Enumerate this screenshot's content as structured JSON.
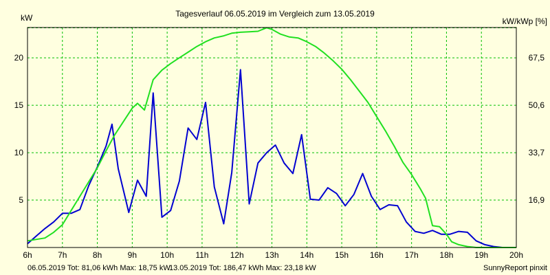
{
  "chart_data": {
    "type": "line",
    "title": "Tagesverlauf 06.05.2019 im Vergleich zum 13.05.2019",
    "ylabel_left": "kW",
    "ylabel_right": "kW/kWp [%]",
    "xlim": [
      6,
      20
    ],
    "ylim": [
      0,
      23.2
    ],
    "x_ticks": [
      "6h",
      "7h",
      "8h",
      "9h",
      "10h",
      "11h",
      "12h",
      "13h",
      "14h",
      "15h",
      "16h",
      "17h",
      "18h",
      "19h",
      "20h"
    ],
    "y_ticks_left": [
      "5",
      "10",
      "15",
      "20"
    ],
    "y_ticks_right": [
      "16,9",
      "33,7",
      "50,6",
      "67,5"
    ],
    "grid": true,
    "colors": {
      "background": "#ffffe0",
      "grid": "#00c000",
      "series_a": "#0000d0",
      "series_b": "#20e020"
    },
    "series": [
      {
        "color": "#0000d0",
        "x": [
          6.0,
          6.25,
          6.5,
          6.75,
          7.0,
          7.25,
          7.5,
          7.75,
          8.0,
          8.25,
          8.42,
          8.6,
          8.9,
          9.15,
          9.4,
          9.6,
          9.85,
          10.1,
          10.35,
          10.6,
          10.85,
          11.1,
          11.35,
          11.62,
          11.85,
          12.1,
          12.35,
          12.6,
          12.85,
          13.1,
          13.35,
          13.6,
          13.85,
          14.1,
          14.35,
          14.6,
          14.85,
          15.1,
          15.35,
          15.6,
          15.85,
          16.1,
          16.35,
          16.6,
          16.85,
          17.1,
          17.35,
          17.6,
          17.85,
          18.1,
          18.35,
          18.6,
          18.85,
          19.1,
          19.35,
          19.6,
          19.85,
          20.0
        ],
        "y": [
          0.4,
          1.2,
          2.0,
          2.7,
          3.6,
          3.6,
          4.0,
          6.5,
          8.5,
          10.7,
          13.0,
          8.3,
          3.7,
          7.1,
          5.4,
          16.3,
          3.2,
          3.9,
          7.0,
          12.6,
          11.4,
          15.3,
          6.4,
          2.5,
          7.9,
          18.75,
          4.6,
          8.9,
          10.0,
          10.8,
          8.9,
          7.8,
          11.9,
          5.1,
          5.0,
          6.3,
          5.7,
          4.4,
          5.6,
          7.8,
          5.4,
          4.0,
          4.5,
          4.4,
          2.7,
          1.7,
          1.5,
          1.8,
          1.4,
          1.4,
          1.7,
          1.6,
          0.7,
          0.3,
          0.1,
          0.0,
          0.0,
          0.0
        ]
      },
      {
        "color": "#20e020",
        "x": [
          6.0,
          6.5,
          6.75,
          7.0,
          7.25,
          7.5,
          7.75,
          8.0,
          8.25,
          8.5,
          8.75,
          9.0,
          9.15,
          9.35,
          9.6,
          9.85,
          10.1,
          10.35,
          10.6,
          10.85,
          11.1,
          11.35,
          11.6,
          11.85,
          12.1,
          12.35,
          12.6,
          12.85,
          13.0,
          13.25,
          13.5,
          13.75,
          14.0,
          14.25,
          14.5,
          14.75,
          15.0,
          15.25,
          15.5,
          15.75,
          16.0,
          16.25,
          16.5,
          16.75,
          17.0,
          17.25,
          17.4,
          17.6,
          17.8,
          18.0,
          18.15,
          18.35,
          18.6,
          18.85,
          19.1,
          19.35,
          19.6,
          19.85,
          20.0
        ],
        "y": [
          0.7,
          1.0,
          1.6,
          2.4,
          3.9,
          5.4,
          6.9,
          8.4,
          10.2,
          11.9,
          13.3,
          14.7,
          15.2,
          14.5,
          17.7,
          18.7,
          19.4,
          20.0,
          20.6,
          21.2,
          21.7,
          22.1,
          22.3,
          22.6,
          22.7,
          22.75,
          22.8,
          23.18,
          23.0,
          22.5,
          22.2,
          22.1,
          21.7,
          21.2,
          20.5,
          19.7,
          18.8,
          17.7,
          16.5,
          15.3,
          13.8,
          12.3,
          10.7,
          9.0,
          7.7,
          6.2,
          5.2,
          2.3,
          2.2,
          1.4,
          0.6,
          0.3,
          0.1,
          0.0,
          0.0,
          0.0,
          0.0,
          0.0,
          0.0
        ]
      }
    ]
  },
  "footer": {
    "series_a_caption": "06.05.2019 Tot: 81,06 kWh Max: 18,75 kW",
    "series_b_caption": "13.05.2019 Tot: 186,47 kWh Max: 23,18 kW",
    "credit": "SunnyReport pinxit"
  }
}
